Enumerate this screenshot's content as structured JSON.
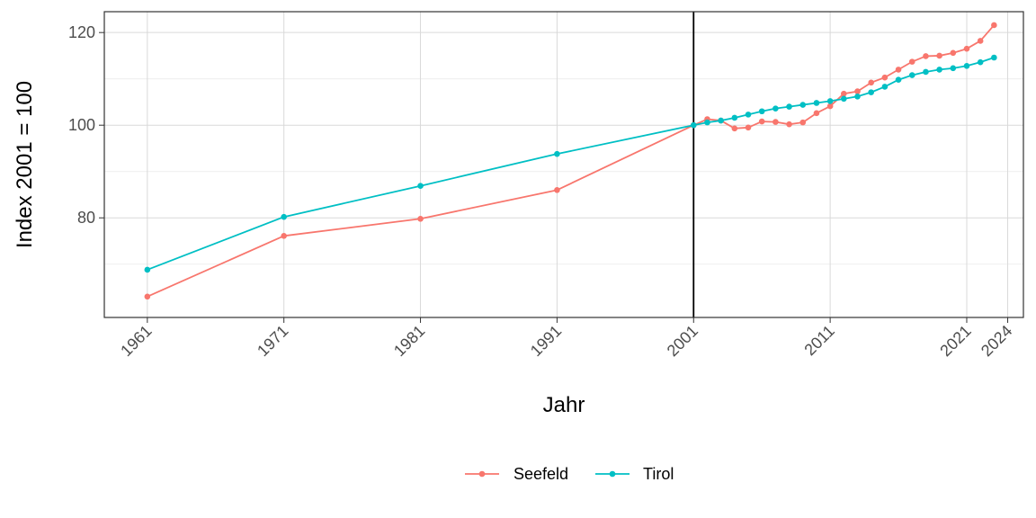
{
  "chart_data": {
    "type": "line",
    "xlabel": "Jahr",
    "ylabel": "Index 2001 = 100",
    "xlim": [
      1957.85,
      2025.15
    ],
    "ylim": [
      58.5,
      124.5
    ],
    "x_ticks": [
      1961,
      1971,
      1981,
      1991,
      2001,
      2011,
      2021,
      2024
    ],
    "y_ticks": [
      80,
      100,
      120
    ],
    "y_minor_ticks": [
      70,
      90,
      110
    ],
    "vline_x": 2001,
    "grid": true,
    "legend_position": "bottom",
    "series": [
      {
        "name": "Seefeld",
        "color": "#F8766D",
        "x": [
          1961,
          1971,
          1981,
          1991,
          2001,
          2002,
          2003,
          2004,
          2005,
          2006,
          2007,
          2008,
          2009,
          2010,
          2011,
          2012,
          2013,
          2014,
          2015,
          2016,
          2017,
          2018,
          2019,
          2020,
          2021,
          2022,
          2023
        ],
        "y": [
          63.0,
          76.1,
          79.8,
          86.0,
          100.0,
          101.3,
          101.0,
          99.3,
          99.5,
          100.8,
          100.7,
          100.2,
          100.6,
          102.6,
          104.1,
          106.8,
          107.3,
          109.2,
          110.3,
          112.0,
          113.7,
          114.9,
          115.0,
          115.6,
          116.5,
          118.2,
          121.6
        ]
      },
      {
        "name": "Tirol",
        "color": "#00BFC4",
        "x": [
          1961,
          1971,
          1981,
          1991,
          2001,
          2002,
          2003,
          2004,
          2005,
          2006,
          2007,
          2008,
          2009,
          2010,
          2011,
          2012,
          2013,
          2014,
          2015,
          2016,
          2017,
          2018,
          2019,
          2020,
          2021,
          2022,
          2023
        ],
        "y": [
          68.8,
          80.2,
          86.9,
          93.8,
          100.0,
          100.6,
          101.0,
          101.6,
          102.3,
          103.0,
          103.6,
          104.0,
          104.4,
          104.8,
          105.2,
          105.7,
          106.2,
          107.1,
          108.3,
          109.8,
          110.8,
          111.5,
          112.0,
          112.3,
          112.8,
          113.6,
          114.6
        ]
      }
    ]
  }
}
